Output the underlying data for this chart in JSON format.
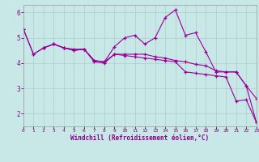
{
  "background_color": "#c8e8e8",
  "grid_color": "#b0cccc",
  "line_color": "#990099",
  "tick_color": "#880088",
  "xlim": [
    0,
    23
  ],
  "ylim": [
    1.5,
    6.3
  ],
  "yticks": [
    2,
    3,
    4,
    5,
    6
  ],
  "xticks": [
    0,
    1,
    2,
    3,
    4,
    5,
    6,
    7,
    8,
    9,
    10,
    11,
    12,
    13,
    14,
    15,
    16,
    17,
    18,
    19,
    20,
    21,
    22,
    23
  ],
  "xlabel": "Windchill (Refroidissement éolien,°C)",
  "line1_x": [
    0,
    1,
    2,
    3,
    4,
    5,
    6,
    7,
    8,
    9,
    10,
    11,
    12,
    13,
    14,
    15,
    16,
    17,
    18,
    19,
    20,
    21,
    22,
    23
  ],
  "line1_y": [
    5.35,
    4.35,
    4.6,
    4.75,
    4.6,
    4.55,
    4.55,
    4.1,
    4.05,
    4.35,
    4.35,
    4.35,
    4.35,
    4.25,
    4.2,
    4.1,
    4.05,
    3.95,
    3.9,
    3.7,
    3.65,
    3.65,
    3.1,
    2.6
  ],
  "line2_x": [
    0,
    1,
    2,
    3,
    4,
    5,
    6,
    7,
    8,
    9,
    10,
    11,
    12,
    13,
    14,
    15,
    16,
    17,
    18,
    19,
    20,
    21,
    22,
    23
  ],
  "line2_y": [
    5.35,
    4.35,
    4.6,
    4.75,
    4.6,
    4.5,
    4.55,
    4.1,
    4.05,
    4.65,
    5.0,
    5.1,
    4.75,
    5.0,
    5.8,
    6.1,
    5.1,
    5.2,
    4.45,
    3.65,
    3.65,
    3.65,
    3.1,
    1.65
  ],
  "line3_x": [
    2,
    3,
    4,
    5,
    6,
    7,
    8,
    9,
    10,
    11,
    12,
    13,
    14,
    15,
    16,
    17,
    18,
    19,
    20,
    21,
    22,
    23
  ],
  "line3_y": [
    4.6,
    4.75,
    4.6,
    4.5,
    4.55,
    4.05,
    4.0,
    4.35,
    4.3,
    4.25,
    4.2,
    4.15,
    4.1,
    4.05,
    3.65,
    3.6,
    3.55,
    3.5,
    3.45,
    2.5,
    2.55,
    1.65
  ]
}
